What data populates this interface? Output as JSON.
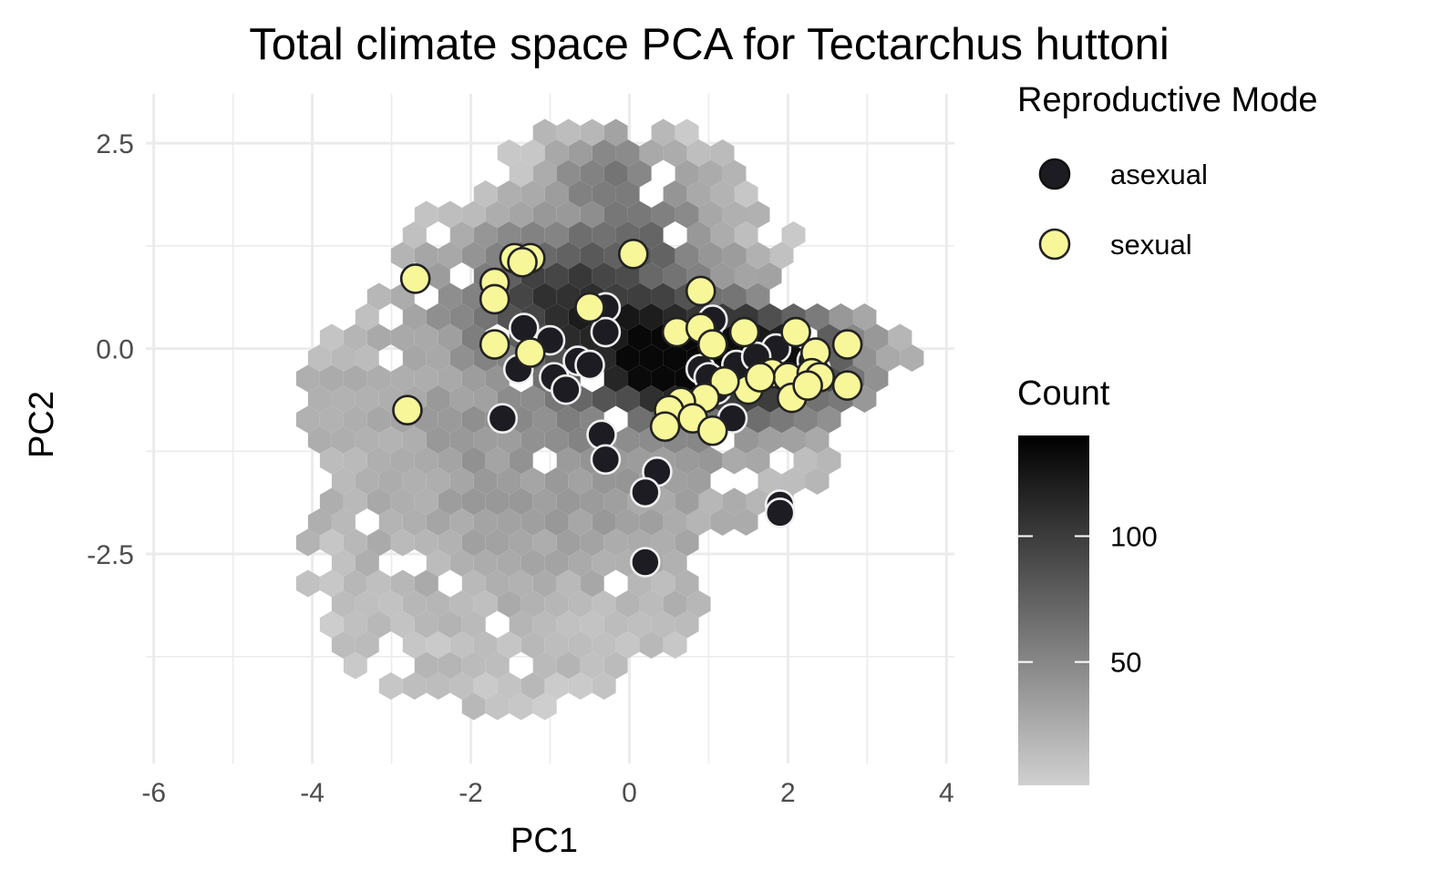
{
  "chart_data": {
    "type": "scatter",
    "title": "Total climate space PCA for Tectarchus huttoni",
    "xlabel": "PC1",
    "ylabel": "PC2",
    "xlim": [
      -6.1,
      4.1
    ],
    "ylim": [
      -5.05,
      3.1
    ],
    "x_ticks": [
      {
        "value": -6,
        "label": "-6"
      },
      {
        "value": -4,
        "label": "-4"
      },
      {
        "value": -2,
        "label": "-2"
      },
      {
        "value": 0,
        "label": "0"
      },
      {
        "value": 2,
        "label": "2"
      },
      {
        "value": 4,
        "label": "4"
      }
    ],
    "y_ticks": [
      {
        "value": 2.5,
        "label": "2.5"
      },
      {
        "value": 0,
        "label": "0.0"
      },
      {
        "value": -2.5,
        "label": "-2.5"
      }
    ],
    "grid": true,
    "background_layer": {
      "type": "hexbin",
      "fill_legend_title": "Count",
      "count_range": [
        1,
        140
      ],
      "colorbar_ticks": [
        {
          "value": 50,
          "label": "50"
        },
        {
          "value": 100,
          "label": "100"
        }
      ],
      "low_color": "#d0d0d0",
      "high_color": "#000000"
    },
    "legend_title": "Reproductive Mode",
    "legend_position": "right",
    "colors": {
      "asexual": "#1c1c22",
      "sexual": "#f7f79a",
      "asexual_stroke": "#f0f0f0",
      "sexual_stroke": "#222222"
    },
    "series": [
      {
        "name": "asexual",
        "points": [
          [
            -1.33,
            0.25
          ],
          [
            -1.4,
            -0.25
          ],
          [
            -1.0,
            0.1
          ],
          [
            -0.95,
            -0.35
          ],
          [
            -0.8,
            -0.5
          ],
          [
            -0.65,
            -0.15
          ],
          [
            -0.5,
            -0.2
          ],
          [
            -0.3,
            0.5
          ],
          [
            -0.3,
            0.2
          ],
          [
            -0.35,
            -1.05
          ],
          [
            -0.3,
            -1.35
          ],
          [
            -1.6,
            -0.85
          ],
          [
            0.35,
            -1.5
          ],
          [
            0.2,
            -1.75
          ],
          [
            0.2,
            -2.6
          ],
          [
            0.9,
            -0.25
          ],
          [
            1.1,
            -0.5
          ],
          [
            1.05,
            0.35
          ],
          [
            1.35,
            -0.2
          ],
          [
            1.3,
            -0.85
          ],
          [
            1.85,
            0.0
          ],
          [
            2.3,
            -0.15
          ],
          [
            2.35,
            -0.25
          ],
          [
            1.9,
            -1.9
          ],
          [
            1.9,
            -2.0
          ],
          [
            1.0,
            -0.35
          ],
          [
            1.6,
            -0.1
          ]
        ]
      },
      {
        "name": "sexual",
        "points": [
          [
            -2.7,
            0.85
          ],
          [
            -2.8,
            -0.75
          ],
          [
            -1.45,
            1.1
          ],
          [
            -1.25,
            1.1
          ],
          [
            -1.35,
            1.05
          ],
          [
            -1.7,
            0.8
          ],
          [
            -1.7,
            0.6
          ],
          [
            -1.7,
            0.05
          ],
          [
            -1.25,
            -0.05
          ],
          [
            0.05,
            1.15
          ],
          [
            -0.5,
            0.5
          ],
          [
            0.9,
            0.7
          ],
          [
            0.6,
            0.2
          ],
          [
            0.9,
            0.25
          ],
          [
            1.05,
            0.05
          ],
          [
            1.45,
            0.2
          ],
          [
            2.1,
            0.2
          ],
          [
            2.75,
            0.05
          ],
          [
            2.35,
            -0.05
          ],
          [
            1.8,
            -0.3
          ],
          [
            2.0,
            -0.35
          ],
          [
            2.3,
            -0.3
          ],
          [
            2.4,
            -0.35
          ],
          [
            2.75,
            -0.45
          ],
          [
            2.05,
            -0.6
          ],
          [
            1.5,
            -0.5
          ],
          [
            1.2,
            -0.4
          ],
          [
            0.95,
            -0.6
          ],
          [
            0.65,
            -0.65
          ],
          [
            0.5,
            -0.75
          ],
          [
            0.8,
            -0.85
          ],
          [
            0.45,
            -0.95
          ],
          [
            1.05,
            -1.0
          ],
          [
            1.65,
            -0.35
          ],
          [
            2.25,
            -0.45
          ]
        ]
      }
    ]
  }
}
